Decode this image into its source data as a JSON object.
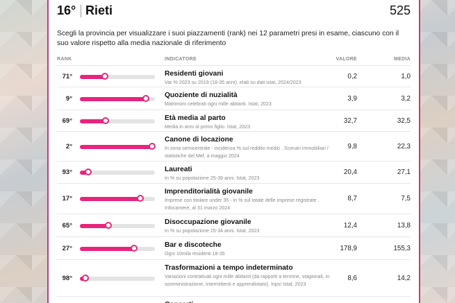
{
  "header": {
    "rank": "16°",
    "province": "Rieti",
    "score": "525"
  },
  "intro": "Scegli la provincia per visualizzare i suoi piazzamenti (rank) nei 12 parametri presi in esame, ciascuno con il suo valore rispetto alla media nazionale di riferimento",
  "columns": {
    "rank": "RANK",
    "indicator": "INDICATORE",
    "value": "VALORE",
    "average": "MEDIA"
  },
  "colors": {
    "accent": "#e8247d",
    "track": "#e3e3e3",
    "frame": "#d6336c"
  },
  "rows": [
    {
      "rank": "71°",
      "level": 0.33,
      "title": "Residenti giovani",
      "sub": "Var % 2023 su 2019 (18-35 anni). elab su dati istat, 2024/2023",
      "value": "0,2",
      "average": "1,0"
    },
    {
      "rank": "9°",
      "level": 0.88,
      "title": "Quoziente di nuzialità",
      "sub": "Matrimoni celebrati ogni mille abitanti. Istat, 2023",
      "value": "3,9",
      "average": "3,2"
    },
    {
      "rank": "69°",
      "level": 0.34,
      "title": "Età media al parto",
      "sub": "Media in anni al primo figlio. Istat, 2023",
      "value": "32,7",
      "average": "32,5"
    },
    {
      "rank": "2°",
      "level": 0.96,
      "title": "Canone di locazione",
      "sub": "In zona semicentrale - incidenza % sul reddito medio . Scenari immobiliari / statistiche del Mef, a maggio 2024",
      "value": "9,8",
      "average": "22,3"
    },
    {
      "rank": "93°",
      "level": 0.11,
      "title": "Laureati",
      "sub": "In % su popolazione 25-39 anni. Istat, 2023",
      "value": "20,4",
      "average": "27,1"
    },
    {
      "rank": "17°",
      "level": 0.81,
      "title": "Imprenditorialità giovanile",
      "sub": "Imprese con titolare under 35 - in % sul totale delle imprese registrate . Infocamere, al 31 marzo 2024",
      "value": "8,7",
      "average": "7,5"
    },
    {
      "rank": "65°",
      "level": 0.38,
      "title": "Disoccupazione giovanile",
      "sub": "In % su popolazione 15-34 anni. Istat, 2023",
      "value": "12,4",
      "average": "13,8"
    },
    {
      "rank": "27°",
      "level": 0.72,
      "title": "Bar e discoteche",
      "sub": "Ogni 10mila residenti 18-35",
      "value": "178,9",
      "average": "155,3"
    },
    {
      "rank": "98°",
      "level": 0.07,
      "title": "Trasformazioni a tempo indeterminato",
      "sub": "Variazioni contrattuali ogni mille abitanti (da rapporti a termine, stagionali, in somministrazione, intermittenti e apprendistato). Inps/ Istat, 2023",
      "value": "8,6",
      "average": "14,2"
    },
    {
      "rank": "",
      "level": null,
      "title": "Concerti",
      "sub": "",
      "value": "",
      "average": ""
    }
  ]
}
